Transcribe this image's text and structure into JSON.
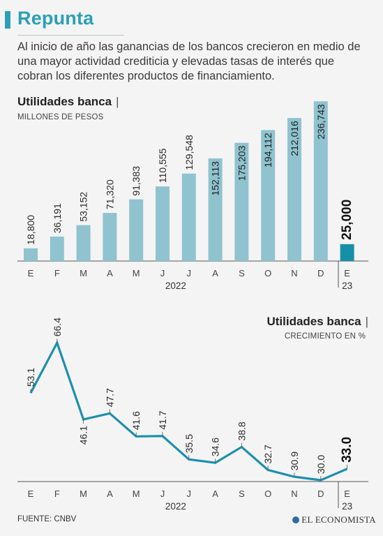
{
  "header": {
    "title": "Repunta",
    "intro": "Al inicio de año las ganancias de los bancos crecieron en medio de una mayor actividad crediticia y elevadas tasas de interés que cobran los diferentes productos de financiamiento."
  },
  "footer": {
    "source": "FUENTE: CNBV",
    "brand": "EL ECONOMISTA"
  },
  "colors": {
    "bar": "#8fc3cf",
    "bar_highlight": "#1590a8",
    "line": "#1d8fae",
    "accent": "#2aa0b7"
  },
  "chart_data": [
    {
      "type": "bar",
      "title": "Utilidades banca",
      "subtitle": "MILLONES DE PESOS",
      "categories": [
        "E",
        "F",
        "M",
        "A",
        "M",
        "J",
        "J",
        "A",
        "S",
        "O",
        "N",
        "D",
        "E"
      ],
      "year_labels": [
        "2022",
        "23"
      ],
      "values": [
        18800,
        36191,
        53152,
        71320,
        91383,
        110555,
        129548,
        152113,
        175203,
        194112,
        212016,
        236743,
        25000
      ],
      "value_labels": [
        "18,800",
        "36,191",
        "53,152",
        "71,320",
        "91,383",
        "110,555",
        "129,548",
        "152,113",
        "175,203",
        "194,112",
        "212,016",
        "236,743",
        "25,000"
      ],
      "highlight_index": 12,
      "ylim": [
        0,
        240000
      ]
    },
    {
      "type": "line",
      "title": "Utilidades banca",
      "subtitle": "CRECIMIENTO EN %",
      "categories": [
        "E",
        "F",
        "M",
        "A",
        "M",
        "J",
        "J",
        "A",
        "S",
        "O",
        "N",
        "D",
        "E"
      ],
      "year_labels": [
        "2022",
        "23"
      ],
      "values": [
        53.1,
        66.4,
        46.1,
        47.7,
        41.6,
        41.7,
        35.5,
        34.6,
        38.8,
        32.7,
        30.9,
        30.0,
        33.0
      ],
      "value_labels": [
        "53.1",
        "66.4",
        "46.1",
        "47.7",
        "41.6",
        "41.7",
        "35.5",
        "34.6",
        "38.8",
        "32.7",
        "30.9",
        "30.0",
        "33.0"
      ],
      "highlight_index": 12,
      "ylim": [
        30,
        67
      ]
    }
  ]
}
